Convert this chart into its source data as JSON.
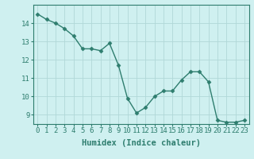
{
  "x": [
    0,
    1,
    2,
    3,
    4,
    5,
    6,
    7,
    8,
    9,
    10,
    11,
    12,
    13,
    14,
    15,
    16,
    17,
    18,
    19,
    20,
    21,
    22,
    23
  ],
  "y": [
    14.5,
    14.2,
    14.0,
    13.7,
    13.3,
    12.6,
    12.6,
    12.5,
    12.9,
    11.7,
    9.9,
    9.1,
    9.4,
    10.0,
    10.3,
    10.3,
    10.9,
    11.35,
    11.35,
    10.8,
    8.7,
    8.6,
    8.6,
    8.7
  ],
  "xlabel": "Humidex (Indice chaleur)",
  "line_color": "#2e7d6e",
  "marker_color": "#2e7d6e",
  "bg_color": "#cff0f0",
  "grid_color": "#b0d8d8",
  "tick_color": "#2e7d6e",
  "label_color": "#2e7d6e",
  "ylim": [
    8.5,
    15.0
  ],
  "xlim": [
    -0.5,
    23.5
  ],
  "yticks": [
    9,
    10,
    11,
    12,
    13,
    14
  ],
  "xticks": [
    0,
    1,
    2,
    3,
    4,
    5,
    6,
    7,
    8,
    9,
    10,
    11,
    12,
    13,
    14,
    15,
    16,
    17,
    18,
    19,
    20,
    21,
    22,
    23
  ],
  "xtick_labels": [
    "0",
    "1",
    "2",
    "3",
    "4",
    "5",
    "6",
    "7",
    "8",
    "9",
    "10",
    "11",
    "12",
    "13",
    "14",
    "15",
    "16",
    "17",
    "18",
    "19",
    "20",
    "21",
    "22",
    "23"
  ],
  "fontsize_ticks": 6.5,
  "fontsize_xlabel": 7.5
}
